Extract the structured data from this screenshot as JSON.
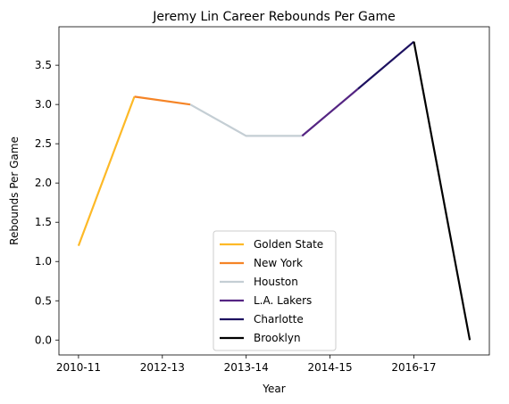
{
  "chart_data": {
    "type": "line",
    "title": "Jeremy Lin Career Rebounds Per Game",
    "xlabel": "Year",
    "ylabel": "Rebounds Per Game",
    "xlim": [
      -0.35,
      7.35
    ],
    "ylim": [
      -0.19,
      3.99
    ],
    "x_ticks": [
      {
        "pos": 0,
        "label": "2010-11"
      },
      {
        "pos": 1.5,
        "label": "2012-13"
      },
      {
        "pos": 3,
        "label": "2013-14"
      },
      {
        "pos": 4.5,
        "label": "2014-15"
      },
      {
        "pos": 6,
        "label": "2016-17"
      }
    ],
    "y_ticks": [
      0.0,
      0.5,
      1.0,
      1.5,
      2.0,
      2.5,
      3.0,
      3.5
    ],
    "y_tick_labels": [
      "0.0",
      "0.5",
      "1.0",
      "1.5",
      "2.0",
      "2.5",
      "3.0",
      "3.5"
    ],
    "grid": false,
    "legend_position": "lower-center",
    "series": [
      {
        "name": "Golden State",
        "color": "#FDB927",
        "x": [
          0,
          1
        ],
        "y": [
          1.2,
          3.1
        ]
      },
      {
        "name": "New York",
        "color": "#F58426",
        "x": [
          1,
          2
        ],
        "y": [
          3.1,
          3.0
        ]
      },
      {
        "name": "Houston",
        "color": "#C4CED4",
        "x": [
          2,
          3,
          4
        ],
        "y": [
          3.0,
          2.6,
          2.6
        ]
      },
      {
        "name": "L.A. Lakers",
        "color": "#552583",
        "x": [
          4,
          5
        ],
        "y": [
          2.6,
          3.2
        ]
      },
      {
        "name": "Charlotte",
        "color": "#1D1160",
        "x": [
          5,
          6
        ],
        "y": [
          3.2,
          3.8
        ]
      },
      {
        "name": "Brooklyn",
        "color": "#000000",
        "x": [
          6,
          7
        ],
        "y": [
          3.8,
          0.0
        ]
      }
    ]
  }
}
